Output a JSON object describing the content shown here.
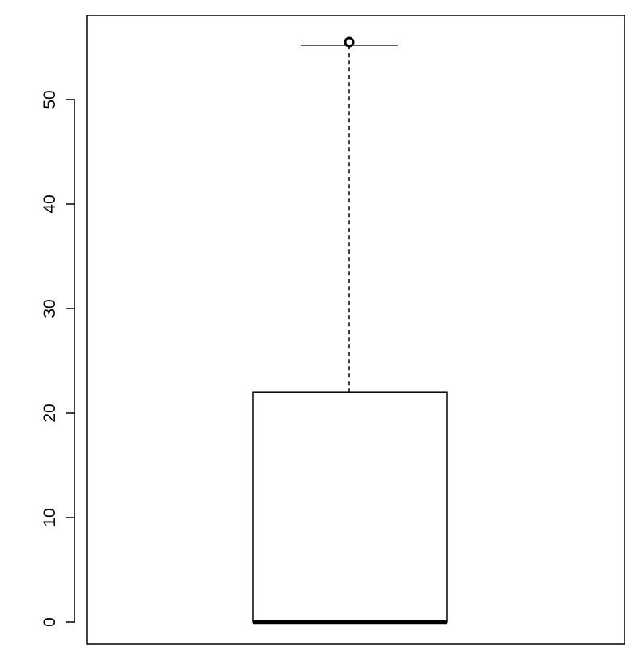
{
  "chart_data": {
    "type": "boxplot",
    "title": "",
    "xlabel": "",
    "ylabel": "",
    "ylim": [
      -2,
      58
    ],
    "yticks": [
      0,
      10,
      20,
      30,
      40,
      50
    ],
    "ytick_labels": [
      "0",
      "10",
      "20",
      "30",
      "40",
      "50"
    ],
    "box": {
      "min": 0,
      "q1": 0,
      "median": 0,
      "q3": 22,
      "whisker_high": 55.2,
      "outliers": [
        55.5
      ]
    },
    "grid": false,
    "legend": "none",
    "colors": {
      "stroke": "#000000",
      "background": "#ffffff"
    }
  }
}
